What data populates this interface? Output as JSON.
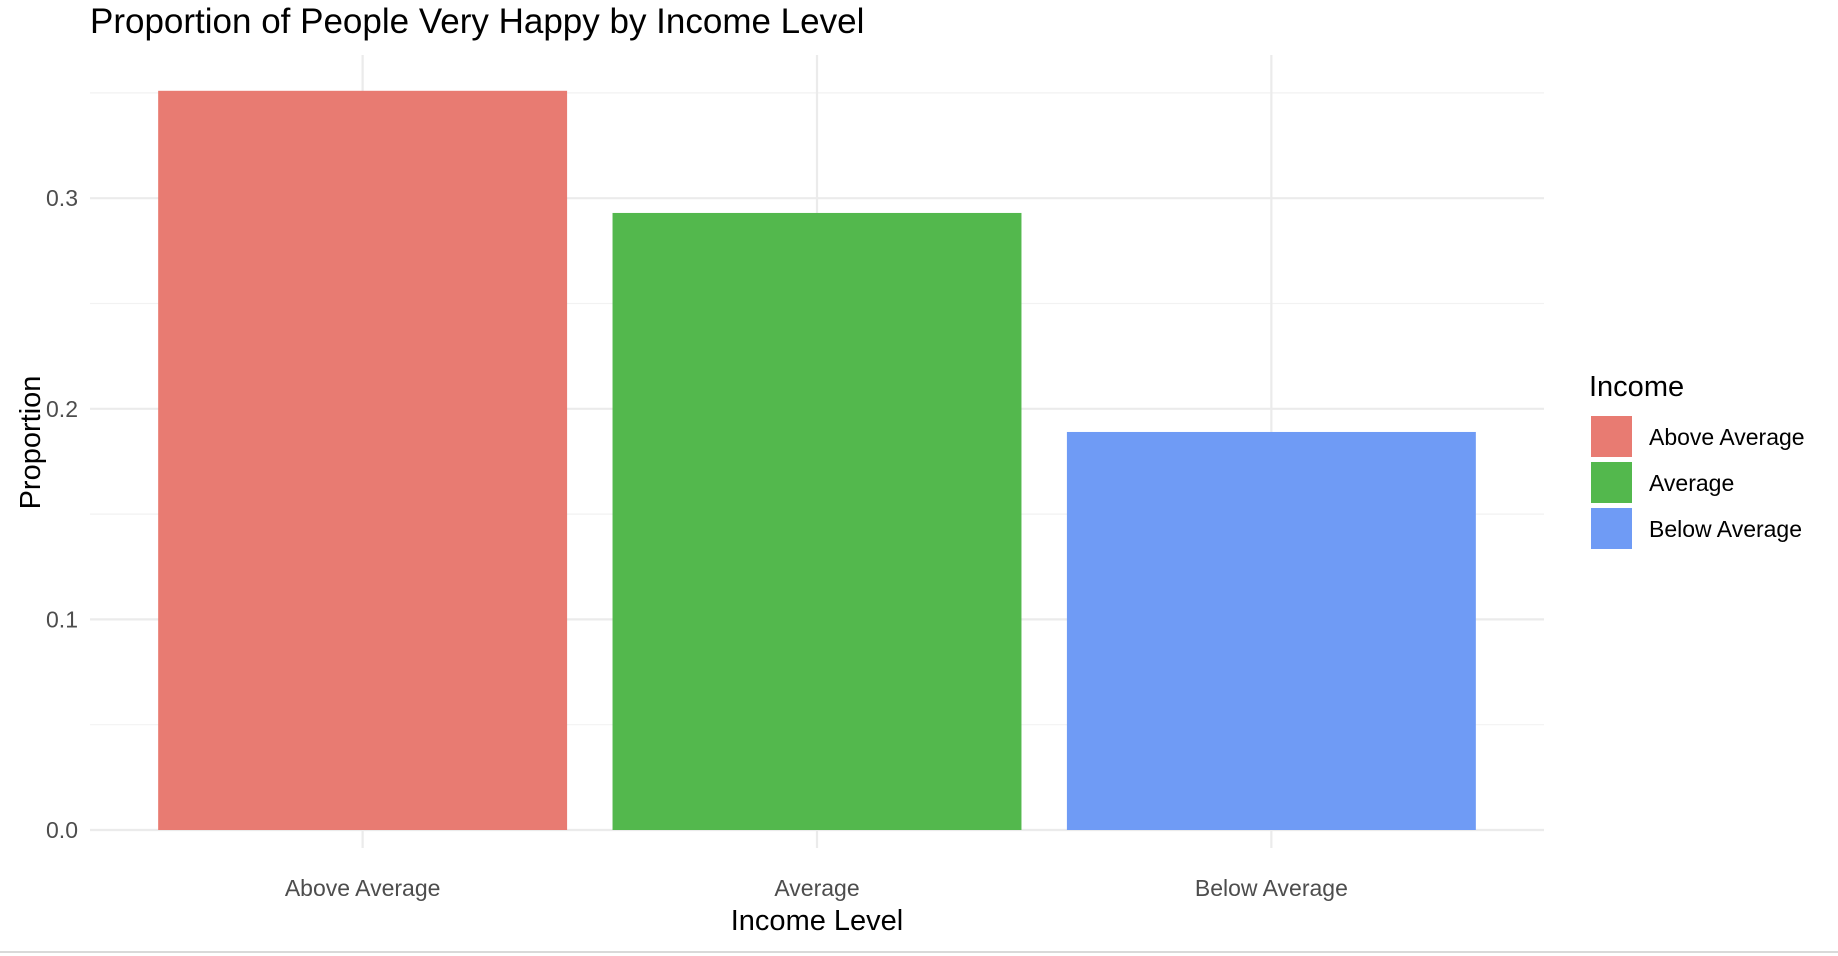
{
  "chart_data": {
    "type": "bar",
    "title": "Proportion of People Very Happy by Income Level",
    "xlabel": "Income Level",
    "ylabel": "Proportion",
    "categories": [
      "Above Average",
      "Average",
      "Below Average"
    ],
    "values": [
      0.351,
      0.293,
      0.189
    ],
    "colors": [
      "#E87B72",
      "#53B84D",
      "#6F9BF5"
    ],
    "ylim": [
      0,
      0.368
    ],
    "yticks": [
      0.0,
      0.1,
      0.2,
      0.3
    ],
    "ytick_labels": [
      "0.0",
      "0.1",
      "0.2",
      "0.3"
    ],
    "grid": true,
    "legend": {
      "title": "Income",
      "position": "right",
      "entries": [
        "Above Average",
        "Average",
        "Below Average"
      ]
    }
  }
}
